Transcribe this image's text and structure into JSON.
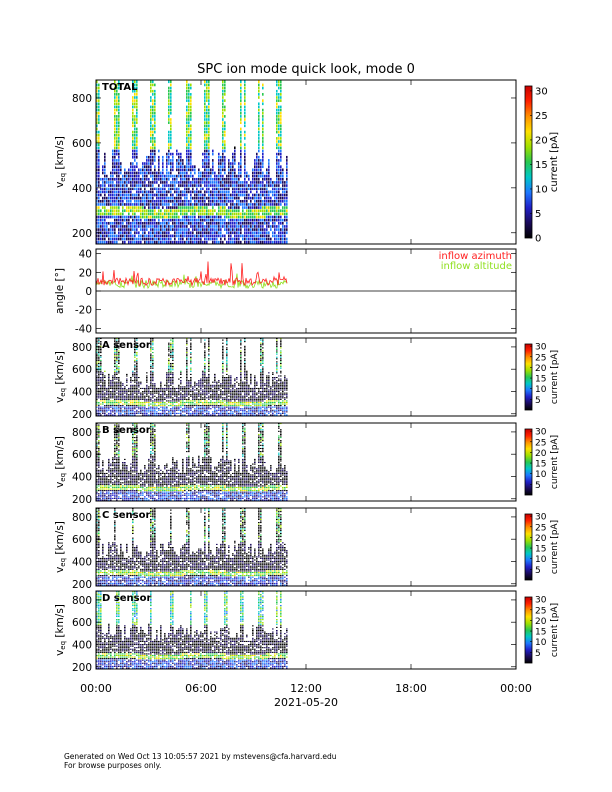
{
  "title": "SPC ion mode quick look, mode 0",
  "footer": {
    "line1": "Generated on Wed Oct 13 10:05:57 2021 by mstevens@cfa.harvard.edu",
    "line2": "For browse purposes only."
  },
  "colors": {
    "azimuth": "#ff2020",
    "altitude": "#90e020",
    "colormap": [
      "#000000",
      "#1a0a5a",
      "#2020c8",
      "#1e78ff",
      "#00c8c8",
      "#28c850",
      "#a0e000",
      "#ffe000",
      "#ff9000",
      "#ff2000",
      "#c80000"
    ]
  },
  "chart_data": [
    {
      "type": "heatmap",
      "panel": "TOTAL",
      "label": "TOTAL",
      "ylabel": "v",
      "ylabel_sub": "eq",
      "ylabel_unit": "[km/s]",
      "ylim": [
        150,
        880
      ],
      "yticks": [
        200,
        400,
        600,
        800
      ],
      "xlim": [
        0,
        24
      ],
      "data_xrange": [
        0,
        10.95
      ],
      "colorbar": {
        "label": "current [pA]",
        "range": [
          0,
          31
        ],
        "ticks": [
          0,
          5,
          10,
          15,
          20,
          25,
          30
        ]
      }
    },
    {
      "type": "line",
      "panel": "angle",
      "ylabel": "angle [°]",
      "ylim": [
        -45,
        45
      ],
      "yticks": [
        -40,
        -20,
        0,
        20,
        40
      ],
      "xlim": [
        0,
        24
      ],
      "data_xrange": [
        0,
        10.95
      ],
      "series": [
        {
          "name": "inflow azimuth",
          "color": "#ff2020"
        },
        {
          "name": "inflow altitude",
          "color": "#90e020"
        }
      ]
    },
    {
      "type": "heatmap",
      "panel": "A",
      "label": "A sensor",
      "ylabel": "v",
      "ylabel_sub": "eq",
      "ylabel_unit": "[km/s]",
      "ylim": [
        180,
        880
      ],
      "yticks": [
        200,
        400,
        600,
        800
      ],
      "xlim": [
        0,
        24
      ],
      "data_xrange": [
        0,
        10.95
      ],
      "colorbar": {
        "label": "current [pA]",
        "range": [
          0,
          31
        ],
        "ticks": [
          5,
          10,
          15,
          20,
          25,
          30
        ]
      }
    },
    {
      "type": "heatmap",
      "panel": "B",
      "label": "B sensor",
      "ylabel": "v",
      "ylabel_sub": "eq",
      "ylabel_unit": "[km/s]",
      "ylim": [
        180,
        880
      ],
      "yticks": [
        200,
        400,
        600,
        800
      ],
      "xlim": [
        0,
        24
      ],
      "data_xrange": [
        0,
        10.95
      ],
      "colorbar": {
        "label": "current [pA]",
        "range": [
          0,
          31
        ],
        "ticks": [
          5,
          10,
          15,
          20,
          25,
          30
        ]
      }
    },
    {
      "type": "heatmap",
      "panel": "C",
      "label": "C sensor",
      "ylabel": "v",
      "ylabel_sub": "eq",
      "ylabel_unit": "[km/s]",
      "ylim": [
        180,
        880
      ],
      "yticks": [
        200,
        400,
        600,
        800
      ],
      "xlim": [
        0,
        24
      ],
      "data_xrange": [
        0,
        10.95
      ],
      "colorbar": {
        "label": "current [pA]",
        "range": [
          0,
          31
        ],
        "ticks": [
          5,
          10,
          15,
          20,
          25,
          30
        ]
      }
    },
    {
      "type": "heatmap",
      "panel": "D",
      "label": "D sensor",
      "ylabel": "v",
      "ylabel_sub": "eq",
      "ylabel_unit": "[km/s]",
      "ylim": [
        180,
        880
      ],
      "yticks": [
        200,
        400,
        600,
        800
      ],
      "xlim": [
        0,
        24
      ],
      "data_xrange": [
        0,
        10.95
      ],
      "colorbar": {
        "label": "current [pA]",
        "range": [
          0,
          31
        ],
        "ticks": [
          5,
          10,
          15,
          20,
          25,
          30
        ]
      }
    }
  ],
  "xaxis": {
    "ticks": [
      0,
      6,
      12,
      18,
      24
    ],
    "tick_labels": [
      "00:00",
      "06:00",
      "12:00",
      "18:00",
      "00:00"
    ],
    "date": "2021-05-20"
  }
}
